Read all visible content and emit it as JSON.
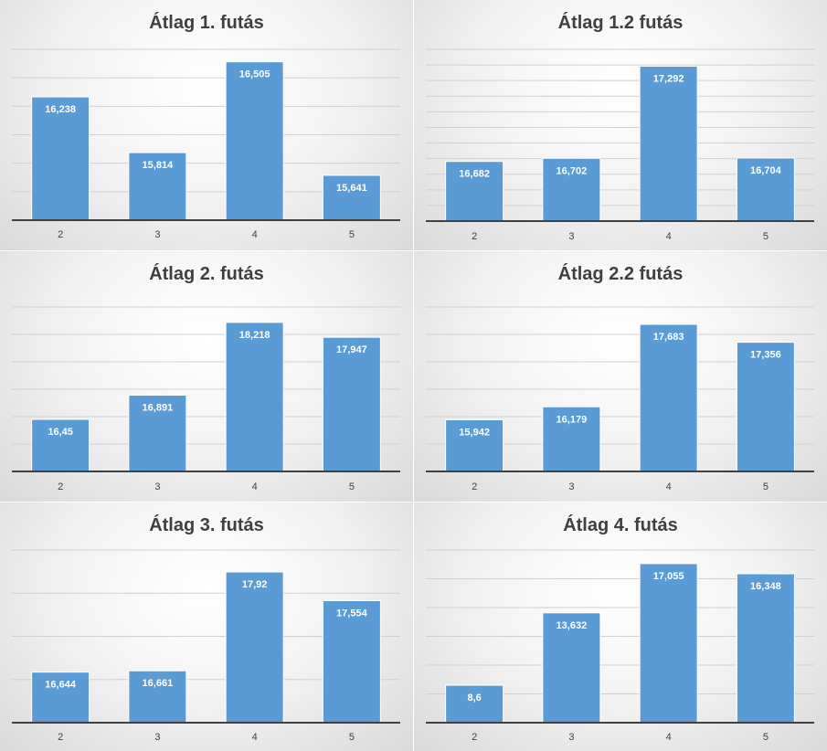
{
  "chart_data": [
    {
      "type": "bar",
      "title": "Átlag 1. futás",
      "categories": [
        "2",
        "3",
        "4",
        "5"
      ],
      "values": [
        16.238,
        15.814,
        16.505,
        15.641
      ],
      "data_labels": [
        "16,238",
        "15,814",
        "16,505",
        "15,641"
      ],
      "ylim": [
        15.3,
        16.6
      ],
      "gridlines": 6,
      "grid": true,
      "legend": "none",
      "bar_color": "#5b9bd5"
    },
    {
      "type": "bar",
      "title": "Átlag 1.2 futás",
      "categories": [
        "2",
        "3",
        "4",
        "5"
      ],
      "values": [
        16.682,
        16.702,
        17.292,
        16.704
      ],
      "data_labels": [
        "16,682",
        "16,702",
        "17,292",
        "16,704"
      ],
      "ylim": [
        16.3,
        17.4
      ],
      "gridlines": 11,
      "grid": true,
      "legend": "none",
      "bar_color": "#5b9bd5"
    },
    {
      "type": "bar",
      "title": "Átlag 2. futás",
      "categories": [
        "2",
        "3",
        "4",
        "5"
      ],
      "values": [
        16.45,
        16.891,
        18.218,
        17.947
      ],
      "data_labels": [
        "16,45",
        "16,891",
        "18,218",
        "17,947"
      ],
      "ylim": [
        15.5,
        18.5
      ],
      "gridlines": 6,
      "grid": true,
      "legend": "none",
      "bar_color": "#5b9bd5"
    },
    {
      "type": "bar",
      "title": "Átlag 2.2 futás",
      "categories": [
        "2",
        "3",
        "4",
        "5"
      ],
      "values": [
        15.942,
        16.179,
        17.683,
        17.356
      ],
      "data_labels": [
        "15,942",
        "16,179",
        "17,683",
        "17,356"
      ],
      "ylim": [
        15,
        18
      ],
      "gridlines": 6,
      "grid": true,
      "legend": "none",
      "bar_color": "#5b9bd5"
    },
    {
      "type": "bar",
      "title": "Átlag 3. futás",
      "categories": [
        "2",
        "3",
        "4",
        "5"
      ],
      "values": [
        16.644,
        16.661,
        17.92,
        17.554
      ],
      "data_labels": [
        "16,644",
        "16,661",
        "17,92",
        "17,554"
      ],
      "ylim": [
        16,
        18.2
      ],
      "gridlines": 4,
      "grid": true,
      "legend": "none",
      "bar_color": "#5b9bd5"
    },
    {
      "type": "bar",
      "title": "Átlag 4. futás",
      "categories": [
        "2",
        "3",
        "4",
        "5"
      ],
      "values": [
        8.6,
        13.632,
        17.055,
        16.348
      ],
      "data_labels": [
        "8,6",
        "13,632",
        "17,055",
        "16,348"
      ],
      "ylim": [
        6,
        18
      ],
      "gridlines": 6,
      "grid": true,
      "legend": "none",
      "bar_color": "#5b9bd5"
    }
  ]
}
